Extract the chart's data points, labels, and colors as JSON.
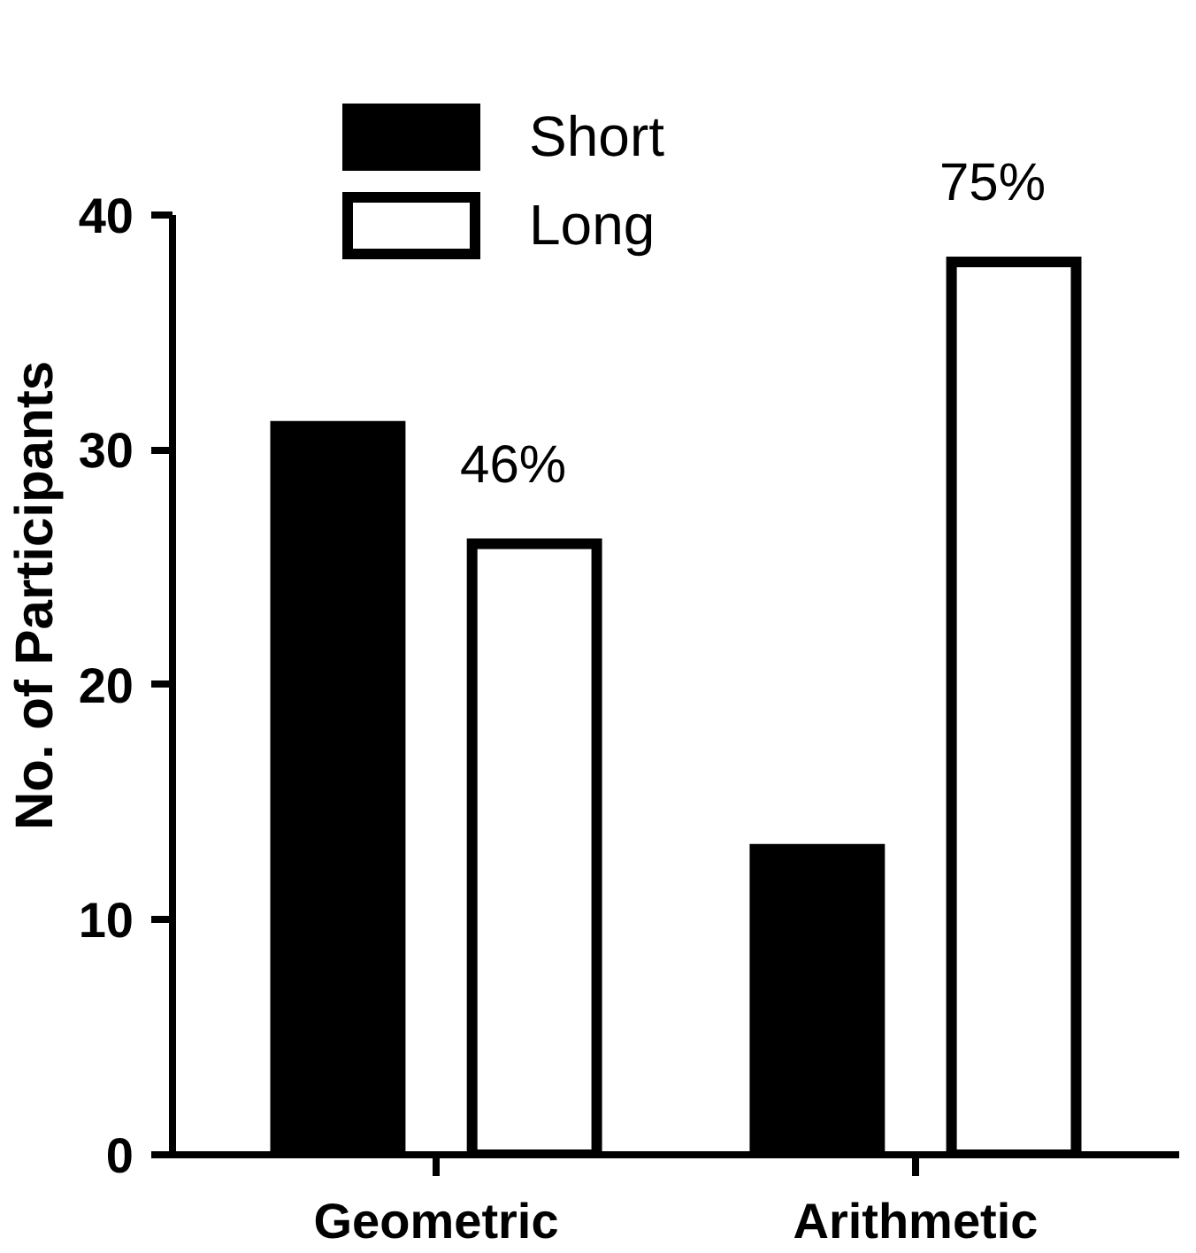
{
  "chart_data": {
    "type": "bar",
    "categories": [
      "Geometric",
      "Arithmetic"
    ],
    "ylabel": "No. of Participants",
    "ylim": [
      0,
      40
    ],
    "yticks": [
      0,
      10,
      20,
      30,
      40
    ],
    "legend": "top",
    "series": [
      {
        "name": "Short",
        "color": "#000000",
        "values": [
          31,
          13
        ]
      },
      {
        "name": "Long",
        "color": "#ffffff",
        "values": [
          26,
          38
        ]
      }
    ],
    "annotations": [
      "46%",
      "75%"
    ]
  }
}
